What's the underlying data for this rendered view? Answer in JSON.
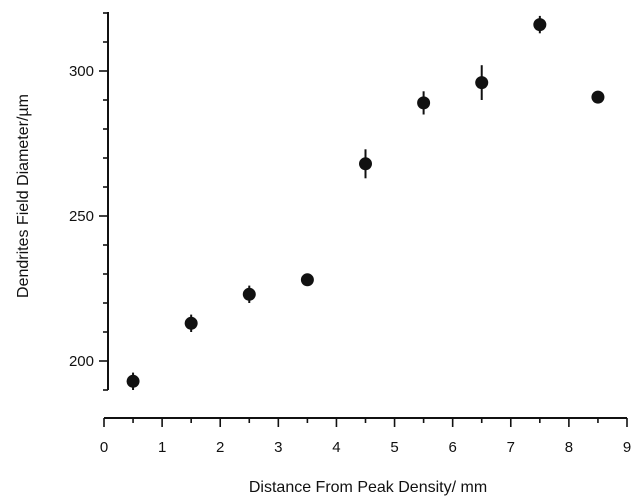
{
  "chart_data": {
    "type": "scatter",
    "title": "",
    "xlabel": "Distance From Peak Density/ mm",
    "ylabel": "Dendrites Field Diameter/µm",
    "xlim": [
      0,
      9
    ],
    "ylim": [
      190,
      320
    ],
    "x_ticks": [
      0,
      1,
      2,
      3,
      4,
      5,
      6,
      7,
      8,
      9
    ],
    "y_ticks": [
      200,
      250,
      300
    ],
    "grid": false,
    "legend": "none",
    "marker_color": "#111111",
    "points": [
      {
        "x": 0.5,
        "y": 193,
        "err": 3
      },
      {
        "x": 1.5,
        "y": 213,
        "err": 3
      },
      {
        "x": 2.5,
        "y": 223,
        "err": 3
      },
      {
        "x": 3.5,
        "y": 228,
        "err": 0
      },
      {
        "x": 4.5,
        "y": 268,
        "err": 5
      },
      {
        "x": 5.5,
        "y": 289,
        "err": 4
      },
      {
        "x": 6.5,
        "y": 296,
        "err": 6
      },
      {
        "x": 7.5,
        "y": 316,
        "err": 3
      },
      {
        "x": 8.5,
        "y": 291,
        "err": 0
      }
    ]
  }
}
